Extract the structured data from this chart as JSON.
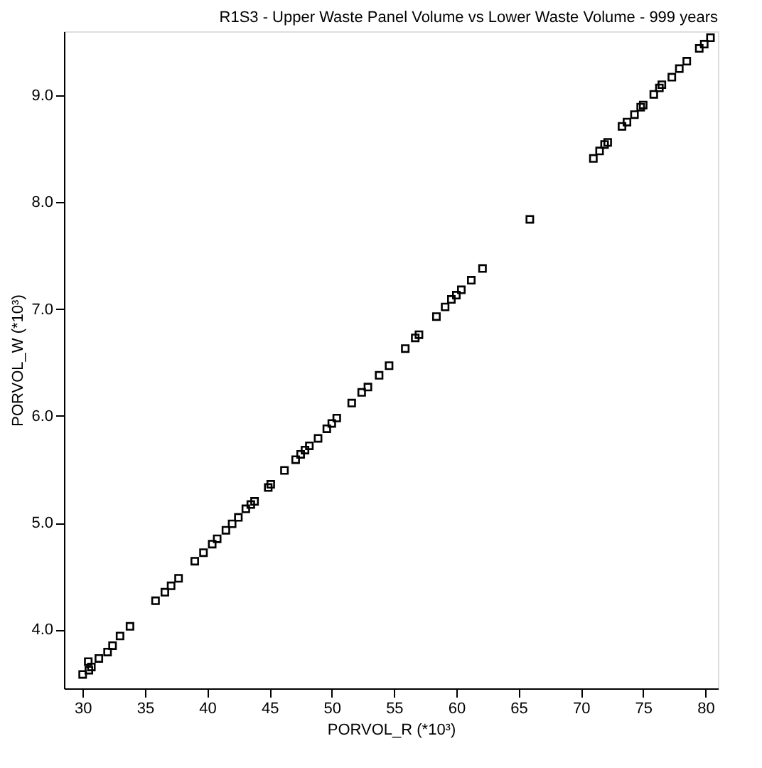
{
  "chart_data": {
    "type": "scatter",
    "title": "R1S3 -  Upper Waste Panel Volume vs Lower Waste Volume - 999 years",
    "xlabel": "PORVOL_R (*10³)",
    "ylabel": "PORVOL_W (*10³)",
    "x": [
      30.0,
      30.5,
      30.45,
      30.7,
      31.3,
      32.0,
      32.4,
      33.0,
      33.8,
      35.85,
      36.6,
      37.1,
      37.7,
      39.0,
      39.7,
      40.4,
      40.8,
      41.5,
      42.0,
      42.5,
      43.1,
      43.5,
      43.8,
      44.9,
      45.1,
      46.2,
      47.1,
      47.5,
      47.85,
      48.2,
      48.9,
      49.6,
      50.0,
      50.4,
      51.6,
      52.4,
      52.9,
      53.8,
      54.6,
      55.9,
      56.7,
      57.0,
      58.4,
      59.1,
      59.6,
      60.0,
      60.4,
      61.2,
      62.1,
      65.9,
      71.0,
      71.5,
      71.9,
      72.15,
      73.3,
      73.7,
      74.3,
      74.8,
      75.0,
      75.85,
      76.3,
      76.5,
      77.3,
      77.9,
      78.5,
      79.5,
      79.9,
      80.4
    ],
    "series": [
      {
        "color": "#000000",
        "values": [
          3.58,
          3.62,
          3.7,
          3.65,
          3.73,
          3.79,
          3.85,
          3.94,
          4.03,
          4.27,
          4.35,
          4.41,
          4.48,
          4.64,
          4.72,
          4.8,
          4.85,
          4.93,
          4.99,
          5.05,
          5.13,
          5.17,
          5.2,
          5.33,
          5.36,
          5.49,
          5.59,
          5.64,
          5.68,
          5.72,
          5.79,
          5.88,
          5.93,
          5.98,
          6.12,
          6.22,
          6.27,
          6.38,
          6.47,
          6.63,
          6.73,
          6.76,
          6.93,
          7.02,
          7.09,
          7.13,
          7.18,
          7.27,
          7.38,
          7.84,
          8.41,
          8.48,
          8.54,
          8.56,
          8.71,
          8.75,
          8.82,
          8.89,
          8.91,
          9.01,
          9.07,
          9.1,
          9.17,
          9.25,
          9.32,
          9.44,
          9.48,
          9.54
        ]
      }
    ],
    "xlim": [
      28.5,
      81.0
    ],
    "xticks": [
      30,
      35,
      40,
      45,
      50,
      55,
      60,
      65,
      70,
      75,
      80
    ],
    "ylim": [
      3.45,
      9.6
    ],
    "yticks": [
      {
        "value": 4,
        "label": "4.0"
      },
      {
        "value": 5,
        "label": "5.0"
      },
      {
        "value": 6,
        "label": "6.0"
      },
      {
        "value": 7,
        "label": "7.0"
      },
      {
        "value": 8,
        "label": "8.0"
      },
      {
        "value": 9,
        "label": "9.0"
      }
    ],
    "marker": "square",
    "grid": false
  }
}
